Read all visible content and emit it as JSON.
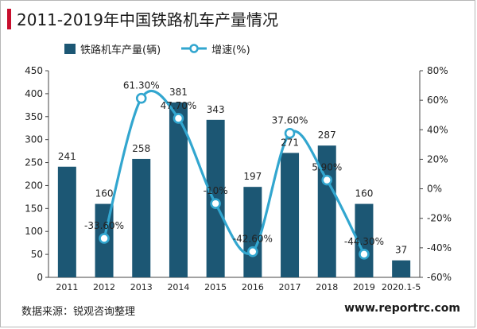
{
  "title": "2011-2019年中国铁路机车产量情况",
  "footer": {
    "source": "数据来源：锐观咨询整理",
    "website": "www.reportrc.com"
  },
  "colors": {
    "bar": "#1c5774",
    "line": "#32a6cf",
    "title_accent": "#c8102e"
  },
  "chart_data": {
    "type": "bar",
    "categories": [
      "2011",
      "2012",
      "2013",
      "2014",
      "2015",
      "2016",
      "2017",
      "2018",
      "2019",
      "2020.1-5"
    ],
    "series": [
      {
        "name": "铁路机车产量(辆)",
        "type": "bar",
        "axis": "left",
        "values": [
          241,
          160,
          258,
          381,
          343,
          197,
          271,
          287,
          160,
          37
        ],
        "labels": [
          "241",
          "160",
          "258",
          "381",
          "343",
          "197",
          "271",
          "287",
          "160",
          "37"
        ]
      },
      {
        "name": "增速(%)",
        "type": "line",
        "axis": "right",
        "values": [
          null,
          -33.6,
          61.3,
          47.7,
          -10.0,
          -42.6,
          37.6,
          5.9,
          -44.3,
          null
        ],
        "labels": [
          "",
          "-33.60%",
          "61.30%",
          "47.70%",
          "-10%",
          "-42.60%",
          "37.60%",
          "5.90%",
          "-44.30%",
          ""
        ]
      }
    ],
    "y_left": {
      "min": 0,
      "max": 450,
      "ticks": [
        "0",
        "50",
        "100",
        "150",
        "200",
        "250",
        "300",
        "350",
        "400",
        "450"
      ]
    },
    "y_right": {
      "min": -60,
      "max": 80,
      "ticks": [
        "-60%",
        "-40%",
        "-20%",
        "0%",
        "20%",
        "40%",
        "60%",
        "80%"
      ]
    },
    "legend_position": "top-left",
    "grid": false
  }
}
